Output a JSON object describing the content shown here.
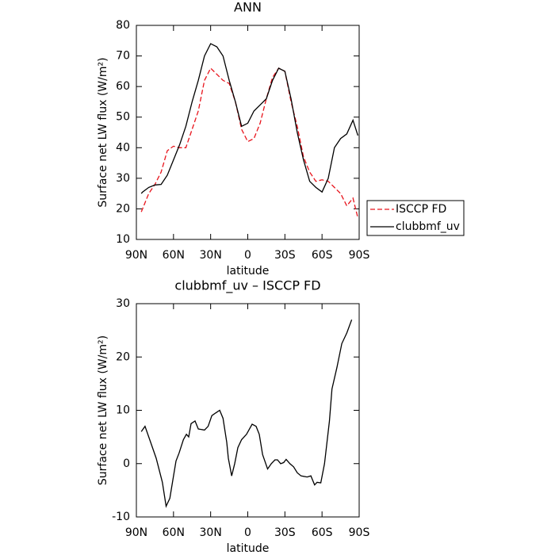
{
  "chart_data": [
    {
      "type": "line",
      "title": "ANN",
      "xlabel": "latitude",
      "ylabel": "Surface net LW flux (W/m²)",
      "xlim": [
        90,
        -90
      ],
      "ylim": [
        10,
        80
      ],
      "xticks": [
        {
          "value": 90,
          "label": "90N"
        },
        {
          "value": 60,
          "label": "60N"
        },
        {
          "value": 30,
          "label": "30N"
        },
        0,
        {
          "value": -30,
          "label": "30S"
        },
        {
          "value": -60,
          "label": "60S"
        },
        {
          "value": -90,
          "label": "90S"
        }
      ],
      "yticks": [
        10,
        20,
        30,
        40,
        50,
        60,
        70,
        80
      ],
      "legend": "right",
      "x": [
        86,
        85,
        80,
        75,
        70,
        65,
        60,
        55,
        50,
        45,
        40,
        35,
        30,
        25,
        20,
        15,
        10,
        5,
        0,
        -5,
        -10,
        -15,
        -20,
        -25,
        -30,
        -35,
        -40,
        -45,
        -50,
        -55,
        -60,
        -65,
        -70,
        -75,
        -80,
        -85,
        -89
      ],
      "series": [
        {
          "name": "ISCCP FD",
          "color": "#e8141c",
          "line_style": "dashed",
          "values": [
            19,
            20,
            25,
            28,
            32,
            39,
            40.5,
            40,
            40,
            46,
            52,
            62,
            66,
            64,
            62,
            61,
            55,
            46,
            42,
            43,
            48,
            56,
            63,
            66,
            65,
            55,
            47,
            37,
            32,
            29,
            29.5,
            29,
            27,
            25,
            21,
            23.5,
            17
          ]
        },
        {
          "name": "clubbmf_uv",
          "color": "#000000",
          "line_style": "solid",
          "values": [
            25,
            25.5,
            27,
            27.8,
            28,
            31,
            36,
            41,
            47,
            55,
            62,
            70,
            74,
            73,
            70,
            62,
            55,
            47,
            48,
            52,
            54,
            56,
            62,
            66,
            65,
            56,
            45,
            36,
            29,
            27,
            25.5,
            30,
            40,
            43,
            44.5,
            49,
            44
          ]
        }
      ]
    },
    {
      "type": "line",
      "title": "clubbmf_uv – ISCCP FD",
      "xlabel": "latitude",
      "ylabel": "Surface net LW flux (W/m²)",
      "xlim": [
        90,
        -90
      ],
      "ylim": [
        -10,
        30
      ],
      "xticks": [
        {
          "value": 90,
          "label": "90N"
        },
        {
          "value": 60,
          "label": "60N"
        },
        {
          "value": 30,
          "label": "30N"
        },
        0,
        {
          "value": -30,
          "label": "30S"
        },
        {
          "value": -60,
          "label": "60S"
        },
        {
          "value": -90,
          "label": "90S"
        }
      ],
      "yticks": [
        -10,
        0,
        10,
        20,
        30
      ],
      "x": [
        86,
        83,
        78.5,
        74,
        69,
        66,
        63,
        60.5,
        58,
        55.5,
        52,
        49.6,
        47.7,
        45.8,
        42.6,
        40,
        35,
        32,
        29,
        26,
        22.7,
        20,
        17,
        15.7,
        13,
        10.6,
        8,
        5,
        1,
        -3.5,
        -6.7,
        -9.3,
        -12,
        -16,
        -19,
        -22,
        -24,
        -26.6,
        -29,
        -31,
        -34,
        -37,
        -40,
        -43,
        -48,
        -51,
        -54,
        -56,
        -59,
        -62,
        -64,
        -66,
        -68,
        -72,
        -76,
        -80,
        -84
      ],
      "series": [
        {
          "name": "clubbmf_uv – ISCCP FD",
          "color": "#000000",
          "line_style": "solid",
          "values": [
            6,
            7,
            4,
            1,
            -3.5,
            -8,
            -6.5,
            -3,
            0.5,
            2,
            4.5,
            5.5,
            5,
            7.5,
            8,
            6.5,
            6.3,
            7,
            9,
            9.5,
            10,
            8.5,
            4,
            1,
            -2.3,
            0,
            3,
            4.5,
            5.5,
            7.4,
            7,
            5.5,
            1.7,
            -1,
            0,
            0.7,
            0.7,
            0,
            0.2,
            0.8,
            0,
            -0.6,
            -1.7,
            -2.3,
            -2.5,
            -2.3,
            -4,
            -3.5,
            -3.6,
            0,
            4,
            8,
            14,
            18,
            22.5,
            24.5,
            27
          ]
        }
      ]
    }
  ]
}
